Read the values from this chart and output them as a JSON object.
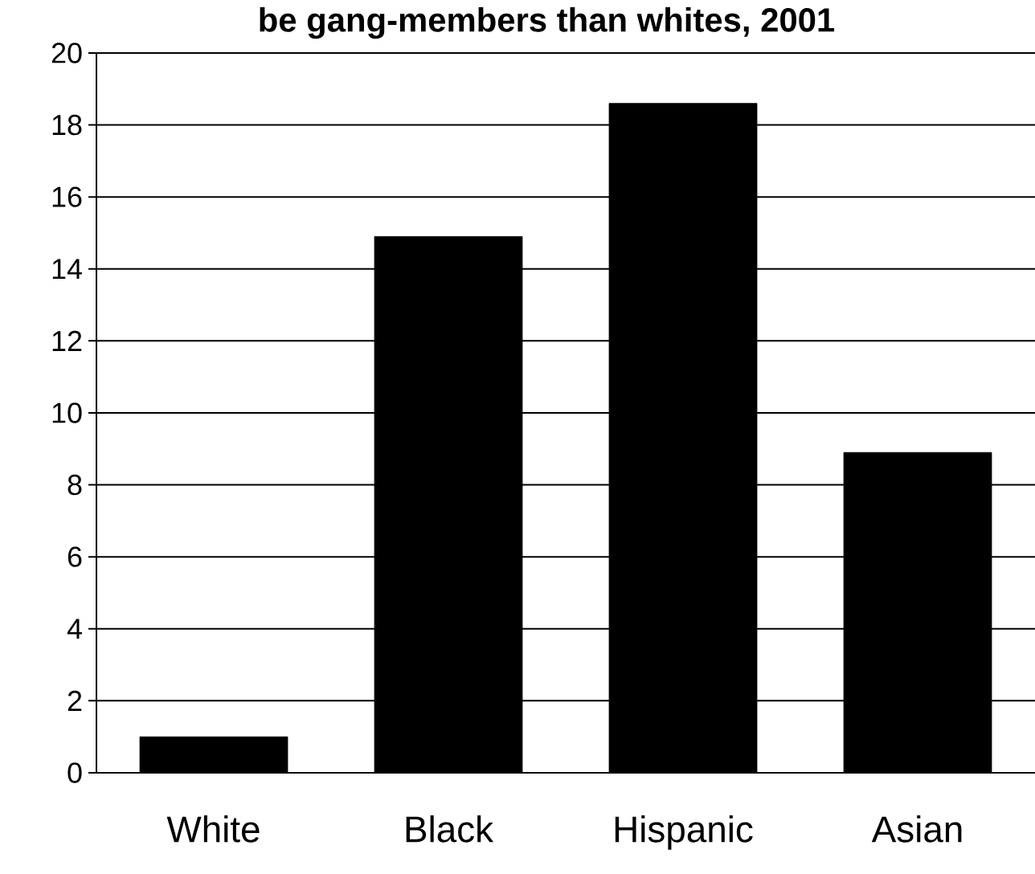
{
  "chart_data": {
    "type": "bar",
    "title": "be gang-members than whites, 2001",
    "categories": [
      "White",
      "Black",
      "Hispanic",
      "Asian"
    ],
    "values": [
      1.0,
      14.9,
      18.6,
      8.9
    ],
    "color": "#000000",
    "ylim": [
      0,
      20
    ],
    "yticks": [
      0,
      2,
      4,
      6,
      8,
      10,
      12,
      14,
      16,
      18,
      20
    ],
    "grid": "y"
  }
}
